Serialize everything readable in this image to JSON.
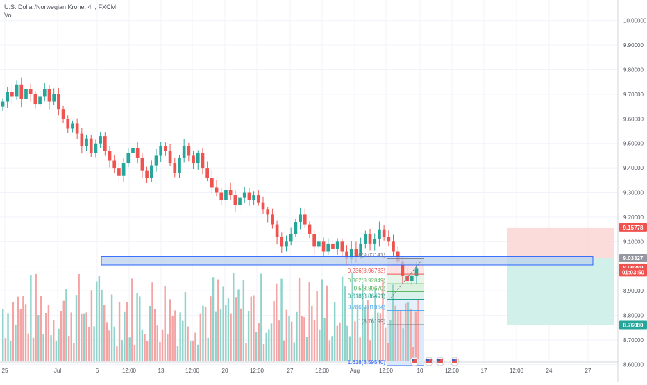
{
  "header": {
    "symbol_title": "U.S. Dollar/Norwegian Krone, 4h, FXCM",
    "volume_label": "Vol"
  },
  "colors": {
    "up": "#26a69a",
    "down": "#ef5350",
    "vol_up": "#8fd3cb",
    "vol_down": "#f4a4a4",
    "grid": "#f0f3fa",
    "zone": "#bbd2ee",
    "zone_border": "#2962ff",
    "stop_zone": "#fbd5d5",
    "target_zone": "#cdeee8"
  },
  "price_axis": {
    "ticks": [
      "10.00000",
      "9.90000",
      "9.80000",
      "9.70000",
      "9.60000",
      "9.50000",
      "9.40000",
      "9.30000",
      "9.20000",
      "9.10000",
      "9.00000",
      "8.90000",
      "8.80000",
      "8.70000",
      "8.60000"
    ],
    "badges": [
      {
        "text": "9.15778",
        "color": "#ef5350",
        "value": 9.15778
      },
      {
        "text": "9.03327",
        "color": "#9598a1",
        "value": 9.03327
      },
      {
        "text": "8.99389",
        "color": "#ef5350",
        "value": 8.99389
      },
      {
        "text": "01:03:50",
        "color": "#ef5350",
        "value": 8.9755
      },
      {
        "text": "8.76080",
        "color": "#26a69a",
        "value": 8.7608
      }
    ]
  },
  "time_axis": {
    "labels": [
      "25",
      "Jul",
      "6",
      "12:00",
      "13",
      "12:00",
      "20",
      "12:00",
      "27",
      "12:00",
      "Aug",
      "12:00",
      "10",
      "12:00",
      "17",
      "12:00",
      "24",
      "27"
    ]
  },
  "fib_levels": [
    {
      "label": "0(9.03141)",
      "value": 9.03141,
      "color": "#787b86"
    },
    {
      "label": "0.236(8.96783)",
      "value": 8.96783,
      "color": "#ef5350"
    },
    {
      "label": "0.382(8.92849)",
      "value": 8.92849,
      "color": "#66bb6a"
    },
    {
      "label": "0.5(8.89670)",
      "value": 8.8967,
      "color": "#4caf50"
    },
    {
      "label": "0.618(8.86491)",
      "value": 8.86491,
      "color": "#089981"
    },
    {
      "label": "0.786(8.81964)",
      "value": 8.81964,
      "color": "#42a5f5"
    },
    {
      "label": "1(8.76199)",
      "value": 8.76199,
      "color": "#787b86"
    },
    {
      "label": "1.618(8.59540)",
      "value": 8.5954,
      "color": "#2962ff"
    }
  ],
  "chart_data": {
    "type": "candlestick",
    "y_range": [
      8.57,
      10.05
    ],
    "support_zone": [
      9.005,
      9.04
    ],
    "position": {
      "stop": 9.15778,
      "entry": 9.03327,
      "target": 8.7608
    },
    "close_series": [
      9.67,
      9.71,
      9.69,
      9.74,
      9.68,
      9.72,
      9.7,
      9.66,
      9.69,
      9.72,
      9.67,
      9.7,
      9.64,
      9.6,
      9.56,
      9.58,
      9.54,
      9.49,
      9.52,
      9.46,
      9.5,
      9.53,
      9.47,
      9.43,
      9.4,
      9.37,
      9.42,
      9.46,
      9.48,
      9.44,
      9.39,
      9.36,
      9.41,
      9.45,
      9.49,
      9.47,
      9.42,
      9.38,
      9.44,
      9.49,
      9.45,
      9.42,
      9.46,
      9.4,
      9.36,
      9.32,
      9.3,
      9.27,
      9.31,
      9.29,
      9.25,
      9.28,
      9.3,
      9.27,
      9.29,
      9.26,
      9.23,
      9.21,
      9.17,
      9.12,
      9.08,
      9.1,
      9.13,
      9.18,
      9.21,
      9.17,
      9.13,
      9.08,
      9.1,
      9.06,
      9.09,
      9.07,
      9.1,
      9.06,
      9.03,
      9.07,
      9.04,
      9.09,
      9.13,
      9.09,
      9.11,
      9.15,
      9.12,
      9.1,
      9.06,
      9.02,
      8.96,
      8.94,
      8.96,
      8.99
    ]
  }
}
